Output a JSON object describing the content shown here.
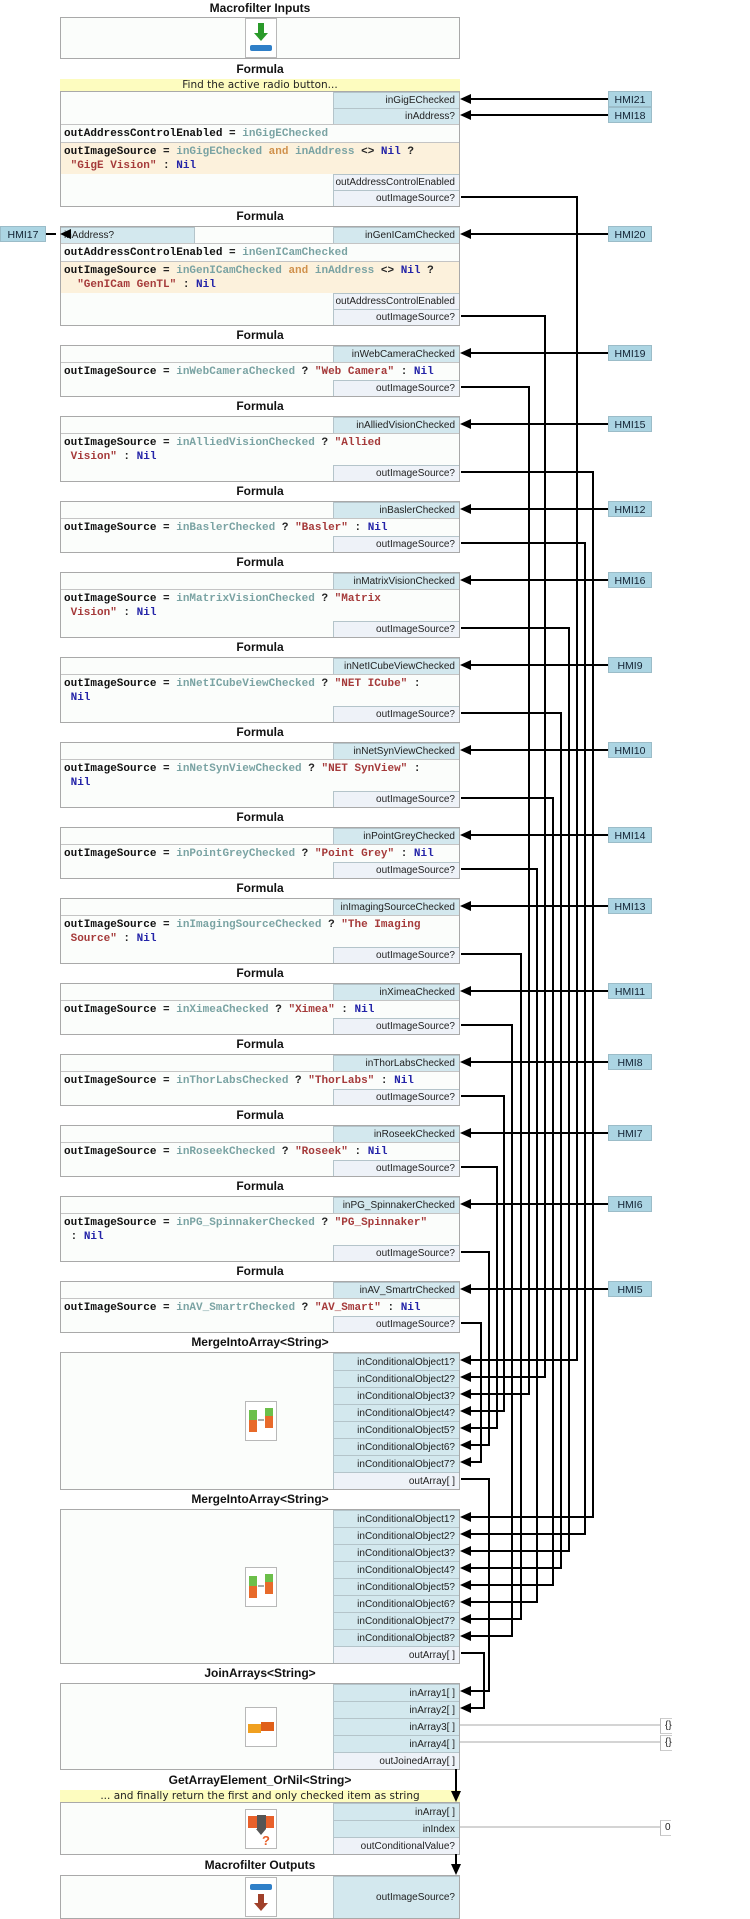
{
  "inputs_block": {
    "title": "Macrofilter Inputs",
    "icon": "macrofilter-input-icon"
  },
  "formulas": [
    {
      "title": "Formula",
      "comment": "Find the active radio button...",
      "inputs": [
        {
          "name": "inGigEChecked",
          "source": "HMI21"
        },
        {
          "name": "inAddress?",
          "source": "HMI18"
        }
      ],
      "code": [
        {
          "style": "white",
          "tokens": [
            [
              "out",
              "outAddressControlEnabled"
            ],
            [
              "op",
              " = "
            ],
            [
              "var",
              "inGigEChecked"
            ]
          ]
        },
        {
          "style": "orange",
          "tokens": [
            [
              "out",
              "outImageSource"
            ],
            [
              "op",
              " = "
            ],
            [
              "var",
              "inGigEChecked"
            ],
            [
              "and",
              " and "
            ],
            [
              "var",
              "inAddress"
            ],
            [
              "op",
              " <> "
            ],
            [
              "nil",
              "Nil"
            ],
            [
              "op",
              " ?\n "
            ],
            [
              "str",
              "\"GigE Vision\""
            ],
            [
              "op",
              " : "
            ],
            [
              "nil",
              "Nil"
            ]
          ]
        }
      ],
      "outputs": [
        "outAddressControlEnabled",
        "outImageSource?"
      ],
      "target": "merge1.1"
    },
    {
      "title": "Formula",
      "left_input": {
        "name": "inAddress?",
        "source": "HMI17"
      },
      "inputs": [
        {
          "name": "inGenICamChecked",
          "source": "HMI20"
        }
      ],
      "code": [
        {
          "style": "white",
          "tokens": [
            [
              "out",
              "outAddressControlEnabled"
            ],
            [
              "op",
              " = "
            ],
            [
              "var",
              "inGenICamChecked"
            ]
          ]
        },
        {
          "style": "orange",
          "tokens": [
            [
              "out",
              "outImageSource"
            ],
            [
              "op",
              " = "
            ],
            [
              "var",
              "inGenICamChecked"
            ],
            [
              "and",
              " and "
            ],
            [
              "var",
              "inAddress"
            ],
            [
              "op",
              " <> "
            ],
            [
              "nil",
              "Nil"
            ],
            [
              "op",
              " ?\n  "
            ],
            [
              "str",
              "\"GenICam GenTL\""
            ],
            [
              "op",
              " : "
            ],
            [
              "nil",
              "Nil"
            ]
          ]
        }
      ],
      "outputs": [
        "outAddressControlEnabled",
        "outImageSource?"
      ],
      "target": "merge1.2"
    },
    {
      "title": "Formula",
      "inputs": [
        {
          "name": "inWebCameraChecked",
          "source": "HMI19"
        }
      ],
      "code": [
        {
          "style": "white",
          "tokens": [
            [
              "out",
              "outImageSource"
            ],
            [
              "op",
              " = "
            ],
            [
              "var",
              "inWebCameraChecked"
            ],
            [
              "op",
              " ? "
            ],
            [
              "str",
              "\"Web Camera\""
            ],
            [
              "op",
              " : "
            ],
            [
              "nil",
              "Nil"
            ]
          ]
        }
      ],
      "outputs": [
        "outImageSource?"
      ],
      "target": "merge1.3"
    },
    {
      "title": "Formula",
      "inputs": [
        {
          "name": "inAlliedVisionChecked",
          "source": "HMI15"
        }
      ],
      "code": [
        {
          "style": "white",
          "tokens": [
            [
              "out",
              "outImageSource"
            ],
            [
              "op",
              " = "
            ],
            [
              "var",
              "inAlliedVisionChecked"
            ],
            [
              "op",
              " ? "
            ],
            [
              "str",
              "\"Allied\n Vision\""
            ],
            [
              "op",
              " : "
            ],
            [
              "nil",
              "Nil"
            ]
          ]
        }
      ],
      "outputs": [
        "outImageSource?"
      ],
      "target": "merge2.1"
    },
    {
      "title": "Formula",
      "inputs": [
        {
          "name": "inBaslerChecked",
          "source": "HMI12"
        }
      ],
      "code": [
        {
          "style": "white",
          "tokens": [
            [
              "out",
              "outImageSource"
            ],
            [
              "op",
              " = "
            ],
            [
              "var",
              "inBaslerChecked"
            ],
            [
              "op",
              " ? "
            ],
            [
              "str",
              "\"Basler\""
            ],
            [
              "op",
              " : "
            ],
            [
              "nil",
              "Nil"
            ]
          ]
        }
      ],
      "outputs": [
        "outImageSource?"
      ],
      "target": "merge2.2"
    },
    {
      "title": "Formula",
      "inputs": [
        {
          "name": "inMatrixVisionChecked",
          "source": "HMI16"
        }
      ],
      "code": [
        {
          "style": "white",
          "tokens": [
            [
              "out",
              "outImageSource"
            ],
            [
              "op",
              " = "
            ],
            [
              "var",
              "inMatrixVisionChecked"
            ],
            [
              "op",
              " ? "
            ],
            [
              "str",
              "\"Matrix\n Vision\""
            ],
            [
              "op",
              " : "
            ],
            [
              "nil",
              "Nil"
            ]
          ]
        }
      ],
      "outputs": [
        "outImageSource?"
      ],
      "target": "merge2.3"
    },
    {
      "title": "Formula",
      "inputs": [
        {
          "name": "inNetICubeViewChecked",
          "source": "HMI9"
        }
      ],
      "code": [
        {
          "style": "white",
          "tokens": [
            [
              "out",
              "outImageSource"
            ],
            [
              "op",
              " = "
            ],
            [
              "var",
              "inNetICubeViewChecked"
            ],
            [
              "op",
              " ? "
            ],
            [
              "str",
              "\"NET ICube\""
            ],
            [
              "op",
              " :\n "
            ],
            [
              "nil",
              "Nil"
            ]
          ]
        }
      ],
      "outputs": [
        "outImageSource?"
      ],
      "target": "merge2.4"
    },
    {
      "title": "Formula",
      "inputs": [
        {
          "name": "inNetSynViewChecked",
          "source": "HMI10"
        }
      ],
      "code": [
        {
          "style": "white",
          "tokens": [
            [
              "out",
              "outImageSource"
            ],
            [
              "op",
              " = "
            ],
            [
              "var",
              "inNetSynViewChecked"
            ],
            [
              "op",
              " ? "
            ],
            [
              "str",
              "\"NET SynView\""
            ],
            [
              "op",
              " :\n "
            ],
            [
              "nil",
              "Nil"
            ]
          ]
        }
      ],
      "outputs": [
        "outImageSource?"
      ],
      "target": "merge2.5"
    },
    {
      "title": "Formula",
      "inputs": [
        {
          "name": "inPointGreyChecked",
          "source": "HMI14"
        }
      ],
      "code": [
        {
          "style": "white",
          "tokens": [
            [
              "out",
              "outImageSource"
            ],
            [
              "op",
              " = "
            ],
            [
              "var",
              "inPointGreyChecked"
            ],
            [
              "op",
              " ? "
            ],
            [
              "str",
              "\"Point Grey\""
            ],
            [
              "op",
              " : "
            ],
            [
              "nil",
              "Nil"
            ]
          ]
        }
      ],
      "outputs": [
        "outImageSource?"
      ],
      "target": "merge2.6"
    },
    {
      "title": "Formula",
      "inputs": [
        {
          "name": "inImagingSourceChecked",
          "source": "HMI13"
        }
      ],
      "code": [
        {
          "style": "white",
          "tokens": [
            [
              "out",
              "outImageSource"
            ],
            [
              "op",
              " = "
            ],
            [
              "var",
              "inImagingSourceChecked"
            ],
            [
              "op",
              " ? "
            ],
            [
              "str",
              "\"The Imaging\n Source\""
            ],
            [
              "op",
              " : "
            ],
            [
              "nil",
              "Nil"
            ]
          ]
        }
      ],
      "outputs": [
        "outImageSource?"
      ],
      "target": "merge2.7"
    },
    {
      "title": "Formula",
      "inputs": [
        {
          "name": "inXimeaChecked",
          "source": "HMI11"
        }
      ],
      "code": [
        {
          "style": "white",
          "tokens": [
            [
              "out",
              "outImageSource"
            ],
            [
              "op",
              " = "
            ],
            [
              "var",
              "inXimeaChecked"
            ],
            [
              "op",
              " ? "
            ],
            [
              "str",
              "\"Ximea\""
            ],
            [
              "op",
              " : "
            ],
            [
              "nil",
              "Nil"
            ]
          ]
        }
      ],
      "outputs": [
        "outImageSource?"
      ],
      "target": "merge2.8"
    },
    {
      "title": "Formula",
      "inputs": [
        {
          "name": "inThorLabsChecked",
          "source": "HMI8"
        }
      ],
      "code": [
        {
          "style": "white",
          "tokens": [
            [
              "out",
              "outImageSource"
            ],
            [
              "op",
              " = "
            ],
            [
              "var",
              "inThorLabsChecked"
            ],
            [
              "op",
              " ? "
            ],
            [
              "str",
              "\"ThorLabs\""
            ],
            [
              "op",
              " : "
            ],
            [
              "nil",
              "Nil"
            ]
          ]
        }
      ],
      "outputs": [
        "outImageSource?"
      ],
      "target": "merge1.4"
    },
    {
      "title": "Formula",
      "inputs": [
        {
          "name": "inRoseekChecked",
          "source": "HMI7"
        }
      ],
      "code": [
        {
          "style": "white",
          "tokens": [
            [
              "out",
              "outImageSource"
            ],
            [
              "op",
              " = "
            ],
            [
              "var",
              "inRoseekChecked"
            ],
            [
              "op",
              " ? "
            ],
            [
              "str",
              "\"Roseek\""
            ],
            [
              "op",
              " : "
            ],
            [
              "nil",
              "Nil"
            ]
          ]
        }
      ],
      "outputs": [
        "outImageSource?"
      ],
      "target": "merge1.5"
    },
    {
      "title": "Formula",
      "inputs": [
        {
          "name": "inPG_SpinnakerChecked",
          "source": "HMI6"
        }
      ],
      "code": [
        {
          "style": "white",
          "tokens": [
            [
              "out",
              "outImageSource"
            ],
            [
              "op",
              " = "
            ],
            [
              "var",
              "inPG_SpinnakerChecked"
            ],
            [
              "op",
              " ? "
            ],
            [
              "str",
              "\"PG_Spinnaker\""
            ],
            [
              "op",
              "\n : "
            ],
            [
              "nil",
              "Nil"
            ]
          ]
        }
      ],
      "outputs": [
        "outImageSource?"
      ],
      "target": "merge1.6"
    },
    {
      "title": "Formula",
      "inputs": [
        {
          "name": "inAV_SmartrChecked",
          "source": "HMI5"
        }
      ],
      "code": [
        {
          "style": "white",
          "tokens": [
            [
              "out",
              "outImageSource"
            ],
            [
              "op",
              " = "
            ],
            [
              "var",
              "inAV_SmartrChecked"
            ],
            [
              "op",
              " ? "
            ],
            [
              "str",
              "\"AV_Smart\""
            ],
            [
              "op",
              " : "
            ],
            [
              "nil",
              "Nil"
            ]
          ]
        }
      ],
      "outputs": [
        "outImageSource?"
      ],
      "target": "merge1.7"
    }
  ],
  "merges": [
    {
      "title": "MergeIntoArray<String>",
      "icon": "merge-into-array-icon",
      "inputs": [
        "inConditionalObject1?",
        "inConditionalObject2?",
        "inConditionalObject3?",
        "inConditionalObject4?",
        "inConditionalObject5?",
        "inConditionalObject6?",
        "inConditionalObject7?"
      ],
      "output": "outArray[ ]",
      "target": "join.1"
    },
    {
      "title": "MergeIntoArray<String>",
      "icon": "merge-into-array-icon",
      "inputs": [
        "inConditionalObject1?",
        "inConditionalObject2?",
        "inConditionalObject3?",
        "inConditionalObject4?",
        "inConditionalObject5?",
        "inConditionalObject6?",
        "inConditionalObject7?",
        "inConditionalObject8?"
      ],
      "output": "outArray[ ]",
      "target": "join.2"
    }
  ],
  "join": {
    "title": "JoinArrays<String>",
    "icon": "join-arrays-icon",
    "inputs": [
      {
        "name": "inArray1[ ]"
      },
      {
        "name": "inArray2[ ]"
      },
      {
        "name": "inArray3[ ]",
        "constant": "{}"
      },
      {
        "name": "inArray4[ ]",
        "constant": "{}"
      }
    ],
    "output": "outJoinedArray[ ]"
  },
  "get_element": {
    "title": "GetArrayElement_OrNil<String>",
    "comment": "... and finally return the first and only checked item as string",
    "icon": "get-array-element-icon",
    "inputs": [
      {
        "name": "inArray[ ]"
      },
      {
        "name": "inIndex",
        "constant": "0"
      }
    ],
    "output": "outConditionalValue?"
  },
  "outputs_block": {
    "title": "Macrofilter Outputs",
    "icon": "macrofilter-output-icon",
    "port": "outImageSource?"
  },
  "colors": {
    "port_input": "#d3e8ee",
    "port_output": "#eef2f8",
    "hmi": "#acd5e3",
    "comment": "#fdfcbf",
    "formula_conditional": "#fcf1dc",
    "wire": "#000000",
    "const_wire": "#bbbbbb"
  }
}
